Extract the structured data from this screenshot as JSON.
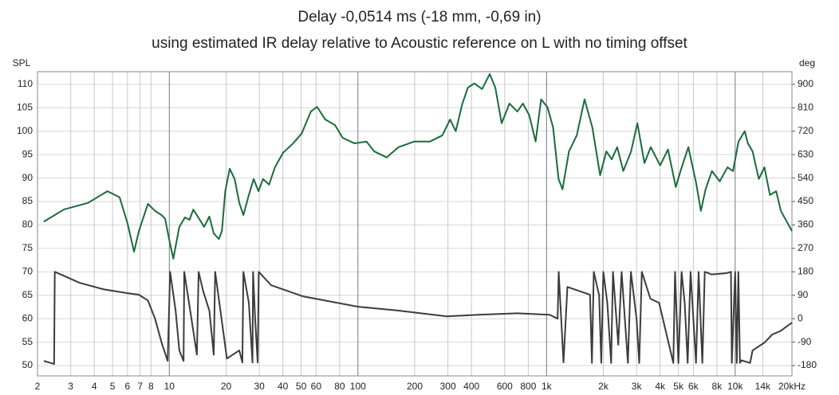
{
  "chart_data": {
    "type": "line",
    "title": "Delay -0,0514 ms (-18 mm, -0,69 in)",
    "subtitle": "using estimated IR delay relative to Acoustic reference on L with no timing offset",
    "y_label": "SPL",
    "y2_label": "deg",
    "xscale": "log",
    "xlim": [
      2,
      20000
    ],
    "xticks": [
      2,
      3,
      4,
      5,
      6,
      7,
      8,
      10,
      20,
      30,
      40,
      50,
      60,
      80,
      100,
      200,
      300,
      400,
      600,
      800,
      {
        "value": 1000,
        "label": "1k"
      },
      {
        "value": 2000,
        "label": "2k"
      },
      {
        "value": 3000,
        "label": "3k"
      },
      {
        "value": 4000,
        "label": "4k"
      },
      {
        "value": 5000,
        "label": "5k"
      },
      {
        "value": 6000,
        "label": "6k"
      },
      {
        "value": 8000,
        "label": "8k"
      },
      {
        "value": 10000,
        "label": "10k"
      },
      {
        "value": 14000,
        "label": "14k"
      },
      {
        "value": 20000,
        "label": "20kHz"
      }
    ],
    "ylim": [
      47.8,
      112.7
    ],
    "yticks": [
      50,
      55,
      60,
      65,
      70,
      75,
      80,
      85,
      90,
      95,
      100,
      105,
      110
    ],
    "y2lim": [
      -219.6,
      948.6
    ],
    "y2ticks": [
      -180,
      -90,
      0,
      90,
      180,
      270,
      360,
      450,
      540,
      630,
      720,
      810,
      900
    ],
    "grid": true,
    "series": [
      {
        "name": "SPL",
        "color": "#1b6b3a",
        "x": [
          2.16,
          2.76,
          3.7,
          4.7,
          5.45,
          6.0,
          6.5,
          6.9,
          7.7,
          8.4,
          9.1,
          9.5,
          9.97,
          10.5,
          11.3,
          12.1,
          12.8,
          13.4,
          14.4,
          15.3,
          16.3,
          17.2,
          18.3,
          19.0,
          19.8,
          20.9,
          22.2,
          23.5,
          24.7,
          26.4,
          28.0,
          29.7,
          31.4,
          33.8,
          36.3,
          40.1,
          45.3,
          50.3,
          56.3,
          60.7,
          67.1,
          75.6,
          82.9,
          96,
          111,
          122,
          142,
          164,
          199,
          241,
          280,
          308,
          330,
          358,
          383,
          414,
          455,
          500,
          535,
          578,
          636,
          700,
          749,
          810,
          875,
          936,
          1012,
          1083,
          1158,
          1215,
          1315,
          1446,
          1590,
          1749,
          1923,
          2076,
          2217,
          2368,
          2552,
          2807,
          3030,
          3304,
          3568,
          4003,
          4403,
          4844,
          5131,
          5645,
          6213,
          6580,
          6968,
          7529,
          8278,
          9110,
          9743,
          10420,
          11240,
          11680,
          12370,
          13350,
          14290,
          15290,
          16500,
          17470,
          20000
        ],
        "values": [
          80.7,
          83.3,
          84.7,
          87.2,
          85.9,
          80.4,
          74.3,
          78.7,
          84.5,
          83.0,
          82.1,
          81.3,
          77.0,
          72.8,
          79.6,
          81.6,
          81.1,
          83.3,
          81.3,
          79.6,
          81.8,
          78.2,
          77.0,
          78.7,
          87.2,
          92.0,
          89.8,
          84.7,
          82.1,
          86.4,
          89.8,
          87.2,
          89.8,
          88.6,
          92.3,
          95.4,
          97.4,
          99.5,
          104.2,
          105.2,
          102.5,
          101.3,
          98.6,
          97.4,
          97.8,
          95.7,
          94.4,
          96.6,
          97.8,
          97.8,
          99.1,
          102.5,
          100.0,
          105.9,
          109.3,
          110.2,
          109.0,
          112.2,
          109.3,
          101.7,
          105.9,
          104.2,
          105.9,
          103.4,
          97.8,
          106.8,
          105.1,
          100.8,
          89.8,
          87.6,
          95.7,
          99.1,
          106.8,
          100.8,
          90.6,
          95.7,
          94.0,
          96.6,
          91.5,
          95.7,
          101.7,
          93.2,
          96.6,
          92.7,
          96.1,
          88.1,
          91.5,
          96.6,
          88.9,
          83.0,
          87.6,
          91.5,
          89.3,
          92.3,
          91.5,
          97.8,
          100.0,
          97.4,
          95.7,
          89.8,
          92.3,
          86.4,
          87.2,
          83.0,
          78.7
        ]
      },
      {
        "name": "Phase",
        "color": "#3c3c3c",
        "axis": "y2",
        "x": [
          2.16,
          2.45,
          2.47,
          3.34,
          4.47,
          6.0,
          6.9,
          7.7,
          8.4,
          9.1,
          9.8,
          10.1,
          10.8,
          11.3,
          11.9,
          12.0,
          13.1,
          14.0,
          14.3,
          15.1,
          16.3,
          17.2,
          17.5,
          20.2,
          23.5,
          24.4,
          24.7,
          26.4,
          27.6,
          27.8,
          28.5,
          29.4,
          29.8,
          34.6,
          51,
          100,
          164,
          296,
          435,
          700,
          1040,
          1145,
          1160,
          1230,
          1290,
          1700,
          1740,
          1780,
          1900,
          1950,
          2000,
          2100,
          2200,
          2250,
          2400,
          2500,
          2700,
          2800,
          3000,
          3100,
          3200,
          3400,
          3550,
          3950,
          4700,
          4800,
          5000,
          5200,
          5400,
          5600,
          5800,
          6200,
          6400,
          6700,
          6900,
          7500,
          9000,
          9500,
          9600,
          10000,
          10200,
          10400,
          10600,
          10800,
          12000,
          12370,
          14290,
          15700,
          17500,
          20000
        ],
        "values": [
          -162,
          -174,
          180,
          138,
          113,
          98,
          92,
          70,
          0,
          -92,
          -162,
          180,
          31,
          -122,
          -162,
          180,
          0,
          -138,
          180,
          107,
          31,
          -138,
          180,
          -153,
          -122,
          -168,
          180,
          61,
          -168,
          180,
          0,
          -168,
          180,
          129,
          86,
          46,
          31,
          9,
          15,
          21,
          15,
          0,
          180,
          -168,
          122,
          92,
          -170,
          180,
          90,
          -170,
          180,
          60,
          -170,
          180,
          -100,
          180,
          -170,
          180,
          0,
          -170,
          180,
          120,
          77,
          61,
          -170,
          180,
          -170,
          180,
          60,
          -170,
          180,
          -170,
          180,
          -170,
          180,
          170,
          175,
          180,
          -170,
          180,
          -170,
          180,
          -170,
          -160,
          -170,
          -122,
          -92,
          -61,
          -46,
          -15
        ]
      }
    ]
  }
}
